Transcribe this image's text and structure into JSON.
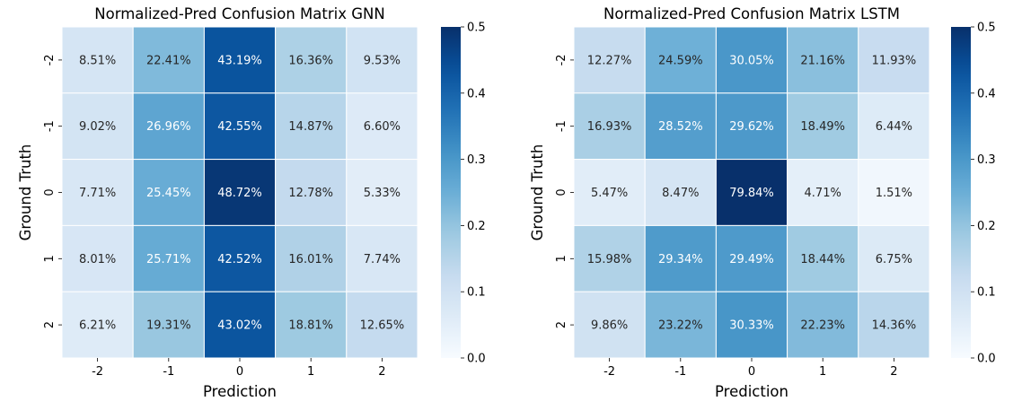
{
  "chart_data": [
    {
      "type": "heatmap",
      "title": "Normalized-Pred Confusion Matrix GNN",
      "xlabel": "Prediction",
      "ylabel": "Ground Truth",
      "x_categories": [
        "-2",
        "-1",
        "0",
        "1",
        "2"
      ],
      "y_categories": [
        "-2",
        "-1",
        "0",
        "1",
        "2"
      ],
      "values": [
        [
          0.0851,
          0.2241,
          0.4319,
          0.1636,
          0.0953
        ],
        [
          0.0902,
          0.2696,
          0.4255,
          0.1487,
          0.066
        ],
        [
          0.0771,
          0.2545,
          0.4872,
          0.1278,
          0.0533
        ],
        [
          0.0801,
          0.2571,
          0.4252,
          0.1601,
          0.0774
        ],
        [
          0.0621,
          0.1931,
          0.4302,
          0.1881,
          0.1265
        ]
      ],
      "cell_labels": [
        [
          "8.51%",
          "22.41%",
          "43.19%",
          "16.36%",
          "9.53%"
        ],
        [
          "9.02%",
          "26.96%",
          "42.55%",
          "14.87%",
          "6.60%"
        ],
        [
          "7.71%",
          "25.45%",
          "48.72%",
          "12.78%",
          "5.33%"
        ],
        [
          "8.01%",
          "25.71%",
          "42.52%",
          "16.01%",
          "7.74%"
        ],
        [
          "6.21%",
          "19.31%",
          "43.02%",
          "18.81%",
          "12.65%"
        ]
      ],
      "colorbar": {
        "range": [
          0,
          0.5
        ],
        "ticks": [
          0.0,
          0.1,
          0.2,
          0.3,
          0.4,
          0.5
        ],
        "tick_labels": [
          "0.0",
          "0.1",
          "0.2",
          "0.3",
          "0.4",
          "0.5"
        ],
        "colormap": "Blues"
      }
    },
    {
      "type": "heatmap",
      "title": "Normalized-Pred Confusion Matrix LSTM",
      "xlabel": "Prediction",
      "ylabel": "Ground Truth",
      "x_categories": [
        "-2",
        "-1",
        "0",
        "1",
        "2"
      ],
      "y_categories": [
        "-2",
        "-1",
        "0",
        "1",
        "2"
      ],
      "values": [
        [
          0.1227,
          0.2459,
          0.3005,
          0.2116,
          0.1193
        ],
        [
          0.1693,
          0.2852,
          0.2962,
          0.1849,
          0.0644
        ],
        [
          0.0547,
          0.0847,
          0.7984,
          0.0471,
          0.0151
        ],
        [
          0.1598,
          0.2934,
          0.2949,
          0.1844,
          0.0675
        ],
        [
          0.0986,
          0.2322,
          0.3033,
          0.2223,
          0.1436
        ]
      ],
      "cell_labels": [
        [
          "12.27%",
          "24.59%",
          "30.05%",
          "21.16%",
          "11.93%"
        ],
        [
          "16.93%",
          "28.52%",
          "29.62%",
          "18.49%",
          "6.44%"
        ],
        [
          "5.47%",
          "8.47%",
          "79.84%",
          "4.71%",
          "1.51%"
        ],
        [
          "15.98%",
          "29.34%",
          "29.49%",
          "18.44%",
          "6.75%"
        ],
        [
          "9.86%",
          "23.22%",
          "30.33%",
          "22.23%",
          "14.36%"
        ]
      ],
      "colorbar": {
        "range": [
          0,
          0.5
        ],
        "ticks": [
          0.0,
          0.1,
          0.2,
          0.3,
          0.4,
          0.5
        ],
        "tick_labels": [
          "0.0",
          "0.1",
          "0.2",
          "0.3",
          "0.4",
          "0.5"
        ],
        "colormap": "Blues"
      }
    }
  ]
}
